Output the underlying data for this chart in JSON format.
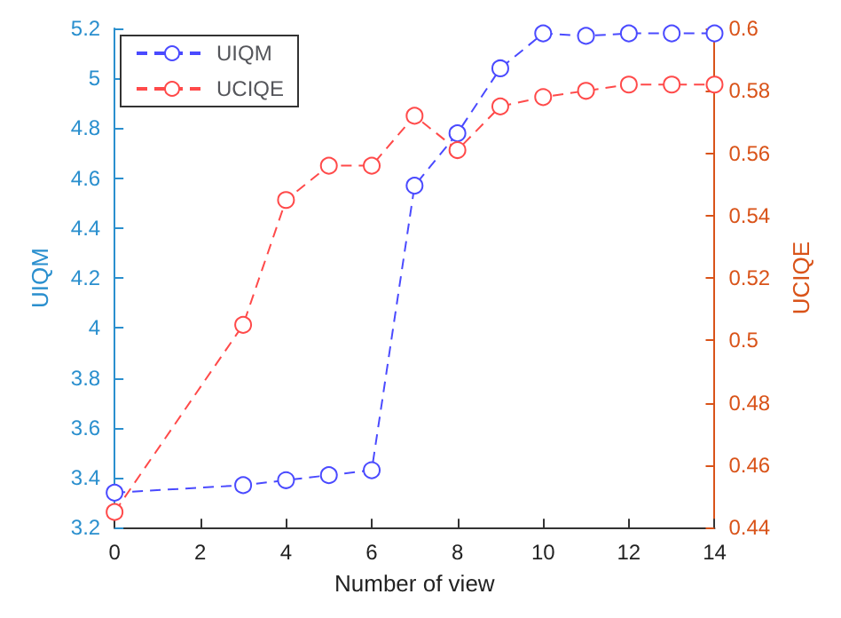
{
  "chart_data": {
    "type": "line",
    "xlabel": "Number of view",
    "ylabel": "UIQM",
    "y2label": "UCIQE",
    "x": [
      0,
      3,
      4,
      5,
      6,
      7,
      8,
      9,
      10,
      11,
      12,
      13,
      14
    ],
    "series": [
      {
        "name": "UIQM",
        "color": "#4a4aff",
        "values": [
          3.34,
          3.37,
          3.39,
          3.41,
          3.43,
          4.57,
          4.78,
          5.04,
          5.18,
          5.17,
          5.18,
          5.18,
          5.18
        ]
      },
      {
        "name": "UCIQE",
        "color": "#ff4a4a",
        "axis": "y2",
        "values": [
          0.445,
          0.505,
          0.545,
          0.556,
          0.556,
          0.572,
          0.561,
          0.575,
          0.578,
          0.58,
          0.582,
          0.582,
          0.582
        ]
      }
    ],
    "xlim": [
      0,
      14
    ],
    "xticks": [
      0,
      2,
      4,
      6,
      8,
      10,
      12,
      14
    ],
    "ylim": [
      3.2,
      5.2
    ],
    "yticks": [
      3.2,
      3.4,
      3.6,
      3.8,
      4,
      4.2,
      4.4,
      4.6,
      4.8,
      5,
      5.2
    ],
    "y2lim": [
      0.44,
      0.6
    ],
    "y2ticks": [
      0.44,
      0.46,
      0.48,
      0.5,
      0.52,
      0.54,
      0.56,
      0.58,
      0.6
    ],
    "marker": "circle",
    "line_style": "dashed",
    "legend": "top left",
    "grid": false
  }
}
